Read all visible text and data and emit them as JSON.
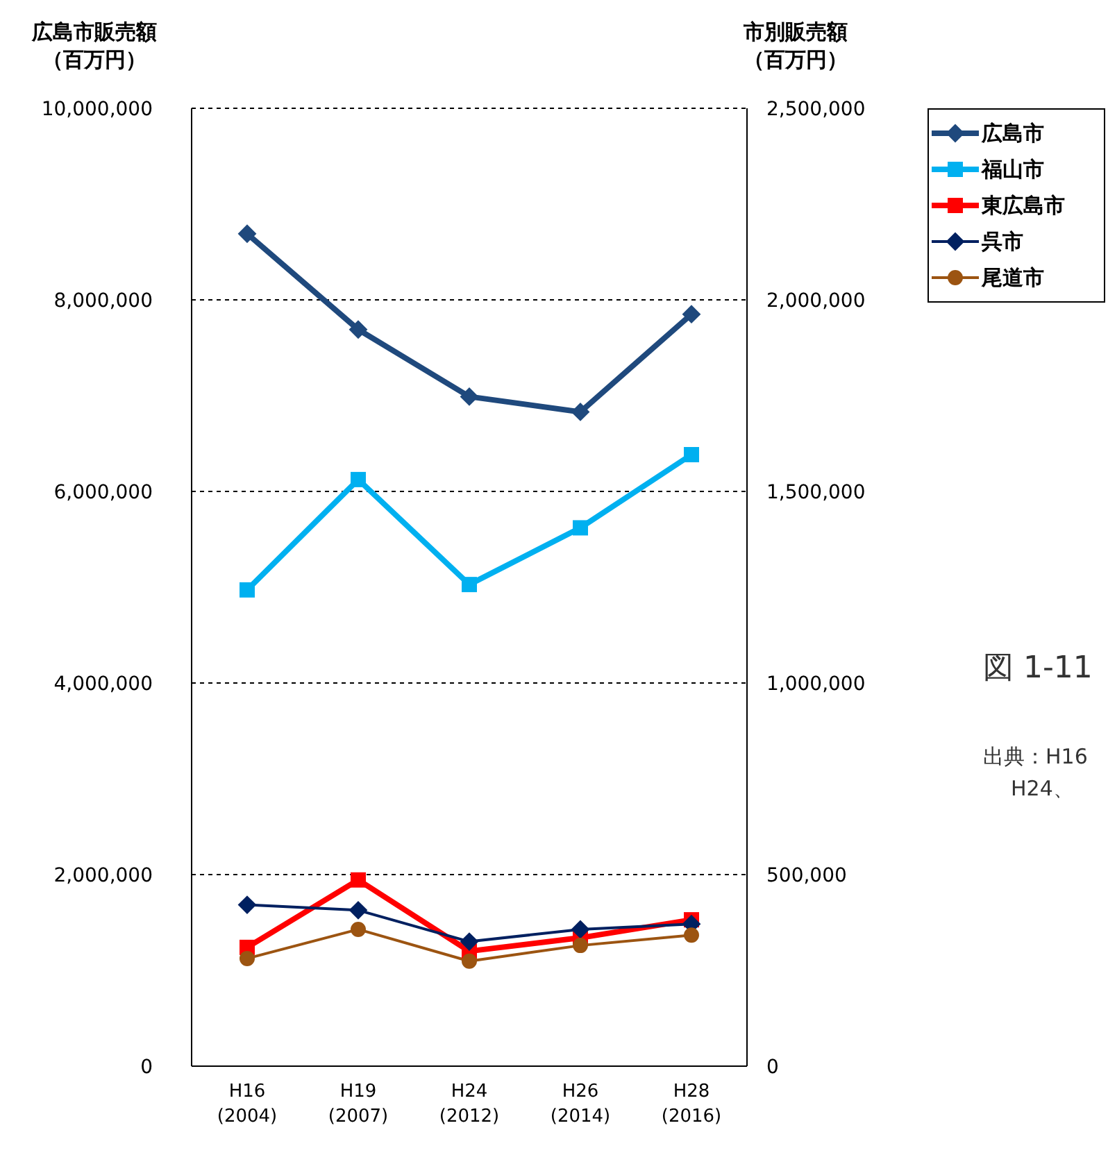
{
  "chart_data": {
    "type": "line",
    "ylabel": "広島市販売額（百万円）",
    "y2label": "市別販売額（百万円）",
    "categories": [
      "H16\n(2004)",
      "H19\n(2007)",
      "H24\n(2012)",
      "H26\n(2014)",
      "H28\n(2016)"
    ],
    "series": [
      {
        "name": "広島市",
        "color": "#1f497d",
        "marker": "diamond",
        "values": [
          8690000,
          7690000,
          6990000,
          6830000,
          7850000
        ]
      },
      {
        "name": "福山市",
        "color": "#00b0f0",
        "marker": "square",
        "axis": "y2",
        "values": [
          1243000,
          1531000,
          1257000,
          1405000,
          1596000
        ]
      },
      {
        "name": "東広島市",
        "color": "#ff0000",
        "marker": "square",
        "axis": "y2",
        "values": [
          310000,
          486000,
          300000,
          335000,
          382000
        ]
      },
      {
        "name": "呉市",
        "color": "#002060",
        "marker": "diamond",
        "axis": "y2",
        "values": [
          421000,
          407000,
          325000,
          357000,
          371000
        ]
      },
      {
        "name": "尾道市",
        "color": "#9c5411",
        "marker": "circle",
        "axis": "y2",
        "values": [
          281000,
          357000,
          274000,
          315000,
          342000
        ]
      }
    ],
    "ylim": [
      0,
      10000000
    ],
    "yticks": [
      0,
      {
        "value": 2000000,
        "label": "2,000,000"
      },
      {
        "value": 4000000,
        "label": "4,000,000"
      },
      {
        "value": 6000000,
        "label": "6,000,000"
      },
      {
        "value": 8000000,
        "label": "8,000,000"
      },
      {
        "value": 10000000,
        "label": "10,000,000"
      }
    ],
    "y2lim": [
      0,
      2500000
    ],
    "y2ticks": [
      0,
      {
        "value": 500000,
        "label": "500,000"
      },
      {
        "value": 1000000,
        "label": "1,000,000"
      },
      {
        "value": 1500000,
        "label": "1,500,000"
      },
      {
        "value": 2000000,
        "label": "2,000,000"
      },
      {
        "value": 2500000,
        "label": "2,500,000"
      }
    ],
    "grid": "y",
    "legend": "top right",
    "line_style": "solid",
    "annotations": [
      "図 1-11",
      "出典：H16",
      "H24、"
    ]
  }
}
